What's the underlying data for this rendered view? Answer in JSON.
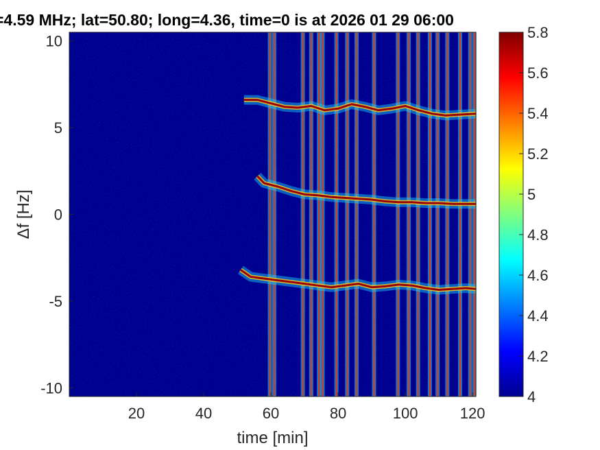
{
  "chart_data": {
    "type": "heatmap",
    "title": "=4.59 MHz;  lat=50.80; long=4.36, time=0 is at 2026 01 29 06:00",
    "xlabel": "time [min]",
    "ylabel": "Δf [Hz]",
    "xlim": [
      0,
      121
    ],
    "ylim": [
      -10.5,
      10.5
    ],
    "x_ticks": [
      20,
      40,
      60,
      80,
      100,
      120
    ],
    "y_ticks": [
      10,
      5,
      0,
      -5,
      -10
    ],
    "colorbar": {
      "range": [
        4,
        5.8
      ],
      "ticks": [
        4,
        4.2,
        4.4,
        4.6,
        4.8,
        5,
        5.2,
        5.4,
        5.6,
        5.8
      ],
      "colormap": "jet"
    },
    "background_color": "#00008f",
    "traces": [
      {
        "points": [
          [
            52,
            6.6
          ],
          [
            56,
            6.6
          ],
          [
            60,
            6.4
          ],
          [
            64,
            6.2
          ],
          [
            68,
            6.15
          ],
          [
            72,
            6.25
          ],
          [
            76,
            6.0
          ],
          [
            80,
            6.1
          ],
          [
            84,
            6.35
          ],
          [
            88,
            6.2
          ],
          [
            92,
            6.0
          ],
          [
            96,
            6.1
          ],
          [
            100,
            6.25
          ],
          [
            104,
            6.0
          ],
          [
            108,
            5.8
          ],
          [
            112,
            5.7
          ],
          [
            116,
            5.75
          ],
          [
            121,
            5.8
          ]
        ]
      },
      {
        "points": [
          [
            56,
            2.2
          ],
          [
            58,
            1.8
          ],
          [
            62,
            1.6
          ],
          [
            66,
            1.35
          ],
          [
            70,
            1.15
          ],
          [
            74,
            1.1
          ],
          [
            78,
            1.0
          ],
          [
            82,
            0.95
          ],
          [
            86,
            0.9
          ],
          [
            90,
            0.85
          ],
          [
            94,
            0.75
          ],
          [
            98,
            0.7
          ],
          [
            102,
            0.7
          ],
          [
            106,
            0.65
          ],
          [
            110,
            0.65
          ],
          [
            114,
            0.6
          ],
          [
            121,
            0.6
          ]
        ]
      },
      {
        "points": [
          [
            51,
            -3.2
          ],
          [
            54,
            -3.6
          ],
          [
            58,
            -3.7
          ],
          [
            62,
            -3.8
          ],
          [
            66,
            -3.9
          ],
          [
            70,
            -4.0
          ],
          [
            74,
            -4.1
          ],
          [
            78,
            -4.2
          ],
          [
            82,
            -4.1
          ],
          [
            86,
            -4.0
          ],
          [
            90,
            -4.2
          ],
          [
            94,
            -4.15
          ],
          [
            98,
            -4.05
          ],
          [
            102,
            -4.1
          ],
          [
            106,
            -4.25
          ],
          [
            110,
            -4.35
          ],
          [
            114,
            -4.3
          ],
          [
            118,
            -4.25
          ],
          [
            121,
            -4.3
          ]
        ]
      }
    ],
    "vertical_lines_min": [
      59.7,
      61.0,
      69.5,
      72.0,
      74.3,
      75.4,
      79.5,
      82.7,
      85.5,
      90.7,
      97.8,
      101.0,
      103.8,
      107.3,
      109.6,
      112.5,
      116.3,
      119.3,
      120.6
    ]
  }
}
